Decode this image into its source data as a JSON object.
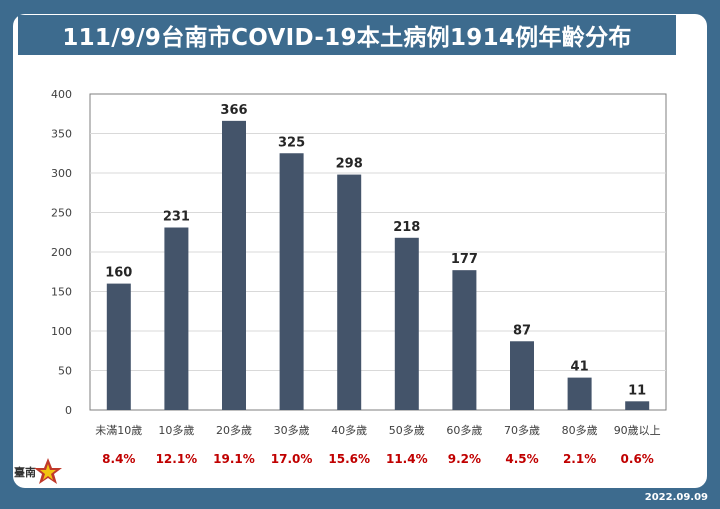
{
  "title": "111/9/9台南市COVID-19本土病例1914例年齡分布",
  "date_stamp": "2022.09.09",
  "logo_text": "臺南",
  "colors": {
    "bar": "#44546a",
    "percent": "#c00000",
    "frame": "#3d6b8e"
  },
  "chart_data": {
    "type": "bar",
    "title": "111/9/9台南市COVID-19本土病例1914例年齡分布",
    "categories": [
      "未滿10歲",
      "10多歲",
      "20多歲",
      "30多歲",
      "40多歲",
      "50多歲",
      "60多歲",
      "70多歲",
      "80多歲",
      "90歲以上"
    ],
    "values": [
      160,
      231,
      366,
      325,
      298,
      218,
      177,
      87,
      41,
      11
    ],
    "percentages": [
      "8.4%",
      "12.1%",
      "19.1%",
      "17.0%",
      "15.6%",
      "11.4%",
      "9.2%",
      "4.5%",
      "2.1%",
      "0.6%"
    ],
    "ylim": [
      0,
      400
    ],
    "yticks": [
      0,
      50,
      100,
      150,
      200,
      250,
      300,
      350,
      400
    ],
    "grid": true,
    "legend": "none"
  }
}
